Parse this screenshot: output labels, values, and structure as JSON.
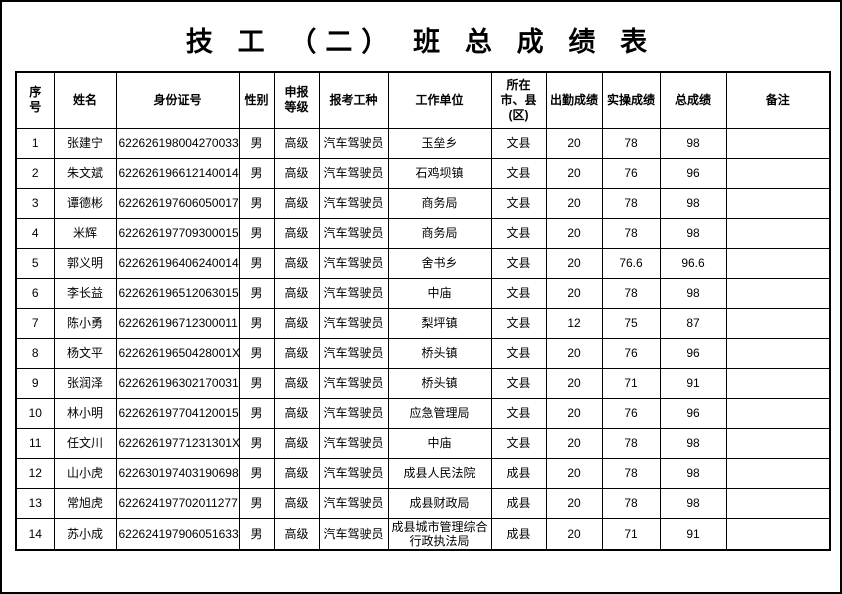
{
  "page": {
    "title": "技 工 （二） 班 总 成 绩 表"
  },
  "table": {
    "columns": [
      {
        "key": "index",
        "label": "序\n号"
      },
      {
        "key": "name",
        "label": "姓名"
      },
      {
        "key": "id_number",
        "label": "身份证号"
      },
      {
        "key": "gender",
        "label": "性别"
      },
      {
        "key": "level",
        "label": "申报\n等级"
      },
      {
        "key": "job_type",
        "label": "报考工种"
      },
      {
        "key": "work_unit",
        "label": "工作单位"
      },
      {
        "key": "county",
        "label": "所在\n市、县\n(区)"
      },
      {
        "key": "attendance",
        "label": "出勤成绩"
      },
      {
        "key": "practical",
        "label": "实操成绩"
      },
      {
        "key": "total",
        "label": "总成绩"
      },
      {
        "key": "remark",
        "label": "备注"
      }
    ],
    "rows": [
      [
        "1",
        "张建宁",
        "622626198004270033",
        "男",
        "高级",
        "汽车驾驶员",
        "玉垒乡",
        "文县",
        "20",
        "78",
        "98",
        ""
      ],
      [
        "2",
        "朱文斌",
        "622626196612140014",
        "男",
        "高级",
        "汽车驾驶员",
        "石鸡坝镇",
        "文县",
        "20",
        "76",
        "96",
        ""
      ],
      [
        "3",
        "谭德彬",
        "622626197606050017",
        "男",
        "高级",
        "汽车驾驶员",
        "商务局",
        "文县",
        "20",
        "78",
        "98",
        ""
      ],
      [
        "4",
        "米辉",
        "622626197709300015",
        "男",
        "高级",
        "汽车驾驶员",
        "商务局",
        "文县",
        "20",
        "78",
        "98",
        ""
      ],
      [
        "5",
        "郭义明",
        "622626196406240014",
        "男",
        "高级",
        "汽车驾驶员",
        "舍书乡",
        "文县",
        "20",
        "76.6",
        "96.6",
        ""
      ],
      [
        "6",
        "李长益",
        "622626196512063015",
        "男",
        "高级",
        "汽车驾驶员",
        "中庙",
        "文县",
        "20",
        "78",
        "98",
        ""
      ],
      [
        "7",
        "陈小勇",
        "622626196712300011",
        "男",
        "高级",
        "汽车驾驶员",
        "梨坪镇",
        "文县",
        "12",
        "75",
        "87",
        ""
      ],
      [
        "8",
        "杨文平",
        "62262619650428001X",
        "男",
        "高级",
        "汽车驾驶员",
        "桥头镇",
        "文县",
        "20",
        "76",
        "96",
        ""
      ],
      [
        "9",
        "张润泽",
        "622626196302170031",
        "男",
        "高级",
        "汽车驾驶员",
        "桥头镇",
        "文县",
        "20",
        "71",
        "91",
        ""
      ],
      [
        "10",
        "林小明",
        "622626197704120015",
        "男",
        "高级",
        "汽车驾驶员",
        "应急管理局",
        "文县",
        "20",
        "76",
        "96",
        ""
      ],
      [
        "11",
        "任文川",
        "62262619771231301X",
        "男",
        "高级",
        "汽车驾驶员",
        "中庙",
        "文县",
        "20",
        "78",
        "98",
        ""
      ],
      [
        "12",
        "山小虎",
        "622630197403190698",
        "男",
        "高级",
        "汽车驾驶员",
        "成县人民法院",
        "成县",
        "20",
        "78",
        "98",
        ""
      ],
      [
        "13",
        "常旭虎",
        "622624197702011277",
        "男",
        "高级",
        "汽车驾驶员",
        "成县财政局",
        "成县",
        "20",
        "78",
        "98",
        ""
      ],
      [
        "14",
        "苏小成",
        "622624197906051633",
        "男",
        "高级",
        "汽车驾驶员",
        "成县城市管理综合行政执法局",
        "成县",
        "20",
        "71",
        "91",
        ""
      ]
    ]
  }
}
